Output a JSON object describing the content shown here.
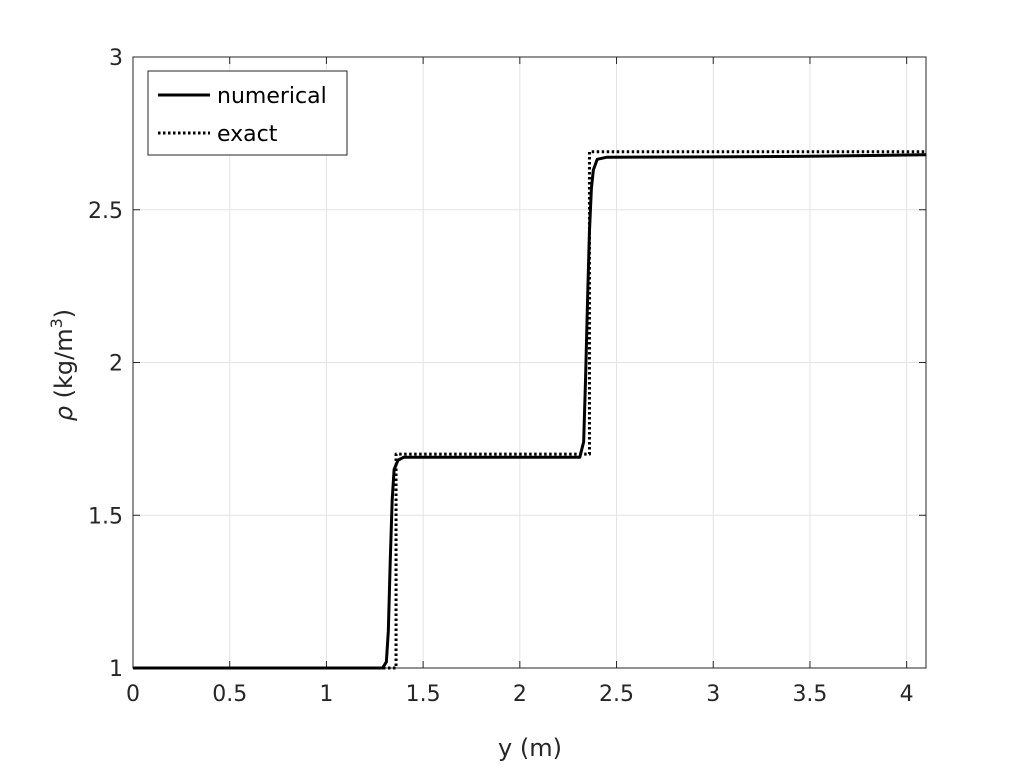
{
  "chart_data": {
    "type": "line",
    "xlabel": "y (m)",
    "ylabel": {
      "symbol": "ρ",
      "unit_open": " (kg/m",
      "unit_sup": "3",
      "unit_close": ")"
    },
    "xlim": [
      0,
      4.1
    ],
    "ylim": [
      1,
      3
    ],
    "xticks": [
      0,
      0.5,
      1,
      1.5,
      2,
      2.5,
      3,
      3.5,
      4
    ],
    "xtick_labels": [
      "0",
      "0.5",
      "1",
      "1.5",
      "2",
      "2.5",
      "3",
      "3.5",
      "4"
    ],
    "yticks": [
      1,
      1.5,
      2,
      2.5,
      3
    ],
    "ytick_labels": [
      "1",
      "1.5",
      "2",
      "2.5",
      "3"
    ],
    "grid": true,
    "legend_position": "top-left",
    "series": [
      {
        "name": "numerical",
        "style": "solid",
        "color": "#000000",
        "x": [
          0,
          1.25,
          1.29,
          1.31,
          1.32,
          1.33,
          1.34,
          1.35,
          1.37,
          1.4,
          1.5,
          2.0,
          2.31,
          2.33,
          2.34,
          2.35,
          2.36,
          2.37,
          2.38,
          2.4,
          2.45,
          3.0,
          3.5,
          4.1
        ],
        "y": [
          1.0,
          1.0,
          1.0,
          1.02,
          1.12,
          1.35,
          1.55,
          1.65,
          1.68,
          1.69,
          1.69,
          1.69,
          1.69,
          1.74,
          1.95,
          2.2,
          2.43,
          2.57,
          2.63,
          2.665,
          2.672,
          2.673,
          2.675,
          2.68
        ]
      },
      {
        "name": "exact",
        "style": "dotted",
        "color": "#000000",
        "x": [
          0,
          1.36,
          1.36,
          2.36,
          2.36,
          4.1
        ],
        "y": [
          1.0,
          1.0,
          1.7,
          1.7,
          2.69,
          2.69
        ]
      }
    ]
  }
}
